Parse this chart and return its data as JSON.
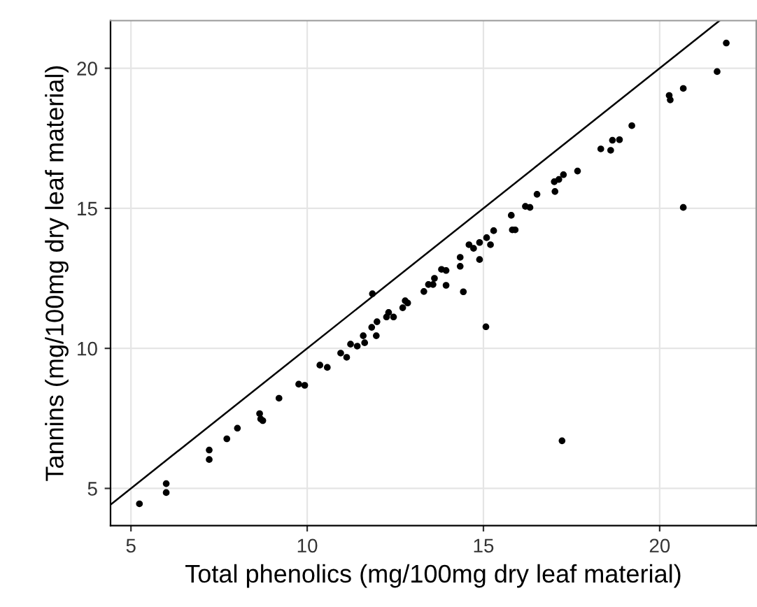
{
  "chart_data": {
    "type": "scatter",
    "xlabel": "Total phenolics (mg/100mg dry leaf material)",
    "ylabel": "Tannins (mg/100mg dry leaf material)",
    "xlim": [
      4.42,
      22.74
    ],
    "ylim": [
      3.67,
      21.7
    ],
    "xticks": [
      5,
      10,
      15,
      20
    ],
    "yticks": [
      5,
      10,
      15,
      20
    ],
    "grid": true,
    "marker": "circle",
    "series": [
      {
        "color": "#000000",
        "x": [
          5.24,
          6.0,
          6.0,
          7.22,
          7.22,
          7.72,
          8.02,
          8.65,
          8.68,
          8.74,
          9.2,
          9.76,
          9.93,
          10.36,
          10.57,
          10.95,
          11.12,
          11.23,
          11.42,
          11.59,
          11.63,
          11.85,
          11.83,
          11.96,
          11.98,
          12.25,
          12.31,
          12.45,
          12.71,
          12.85,
          12.78,
          13.31,
          13.44,
          13.57,
          13.61,
          13.81,
          13.94,
          13.94,
          14.34,
          14.34,
          14.43,
          14.59,
          14.72,
          14.89,
          14.89,
          15.09,
          15.29,
          15.2,
          15.07,
          15.79,
          15.82,
          15.9,
          16.19,
          16.32,
          16.52,
          17.01,
          17.03,
          17.14,
          17.27,
          17.23,
          17.67,
          18.33,
          18.61,
          18.66,
          18.86,
          19.21,
          20.27,
          20.3,
          20.67,
          20.67,
          21.63,
          21.89
        ],
        "values": [
          4.45,
          5.17,
          4.85,
          6.37,
          6.03,
          6.77,
          7.15,
          7.67,
          7.48,
          7.42,
          8.22,
          8.72,
          8.68,
          9.4,
          9.32,
          9.83,
          9.68,
          10.15,
          10.08,
          10.45,
          10.2,
          11.95,
          10.75,
          10.45,
          10.95,
          11.12,
          11.28,
          11.12,
          11.45,
          11.62,
          11.7,
          12.03,
          12.28,
          12.28,
          12.5,
          12.82,
          12.78,
          12.25,
          13.25,
          12.93,
          12.02,
          13.7,
          13.57,
          13.78,
          13.17,
          13.95,
          14.2,
          13.7,
          10.77,
          14.75,
          14.23,
          14.23,
          15.07,
          15.03,
          15.5,
          15.95,
          15.6,
          16.03,
          16.2,
          6.7,
          16.33,
          17.12,
          17.07,
          17.43,
          17.45,
          17.95,
          19.03,
          18.87,
          19.28,
          15.03,
          19.88,
          20.9
        ]
      },
      {
        "type": "line",
        "color": "#000000",
        "marker": "none",
        "x": [
          4.42,
          21.7
        ],
        "values": [
          4.42,
          21.7
        ]
      }
    ]
  }
}
